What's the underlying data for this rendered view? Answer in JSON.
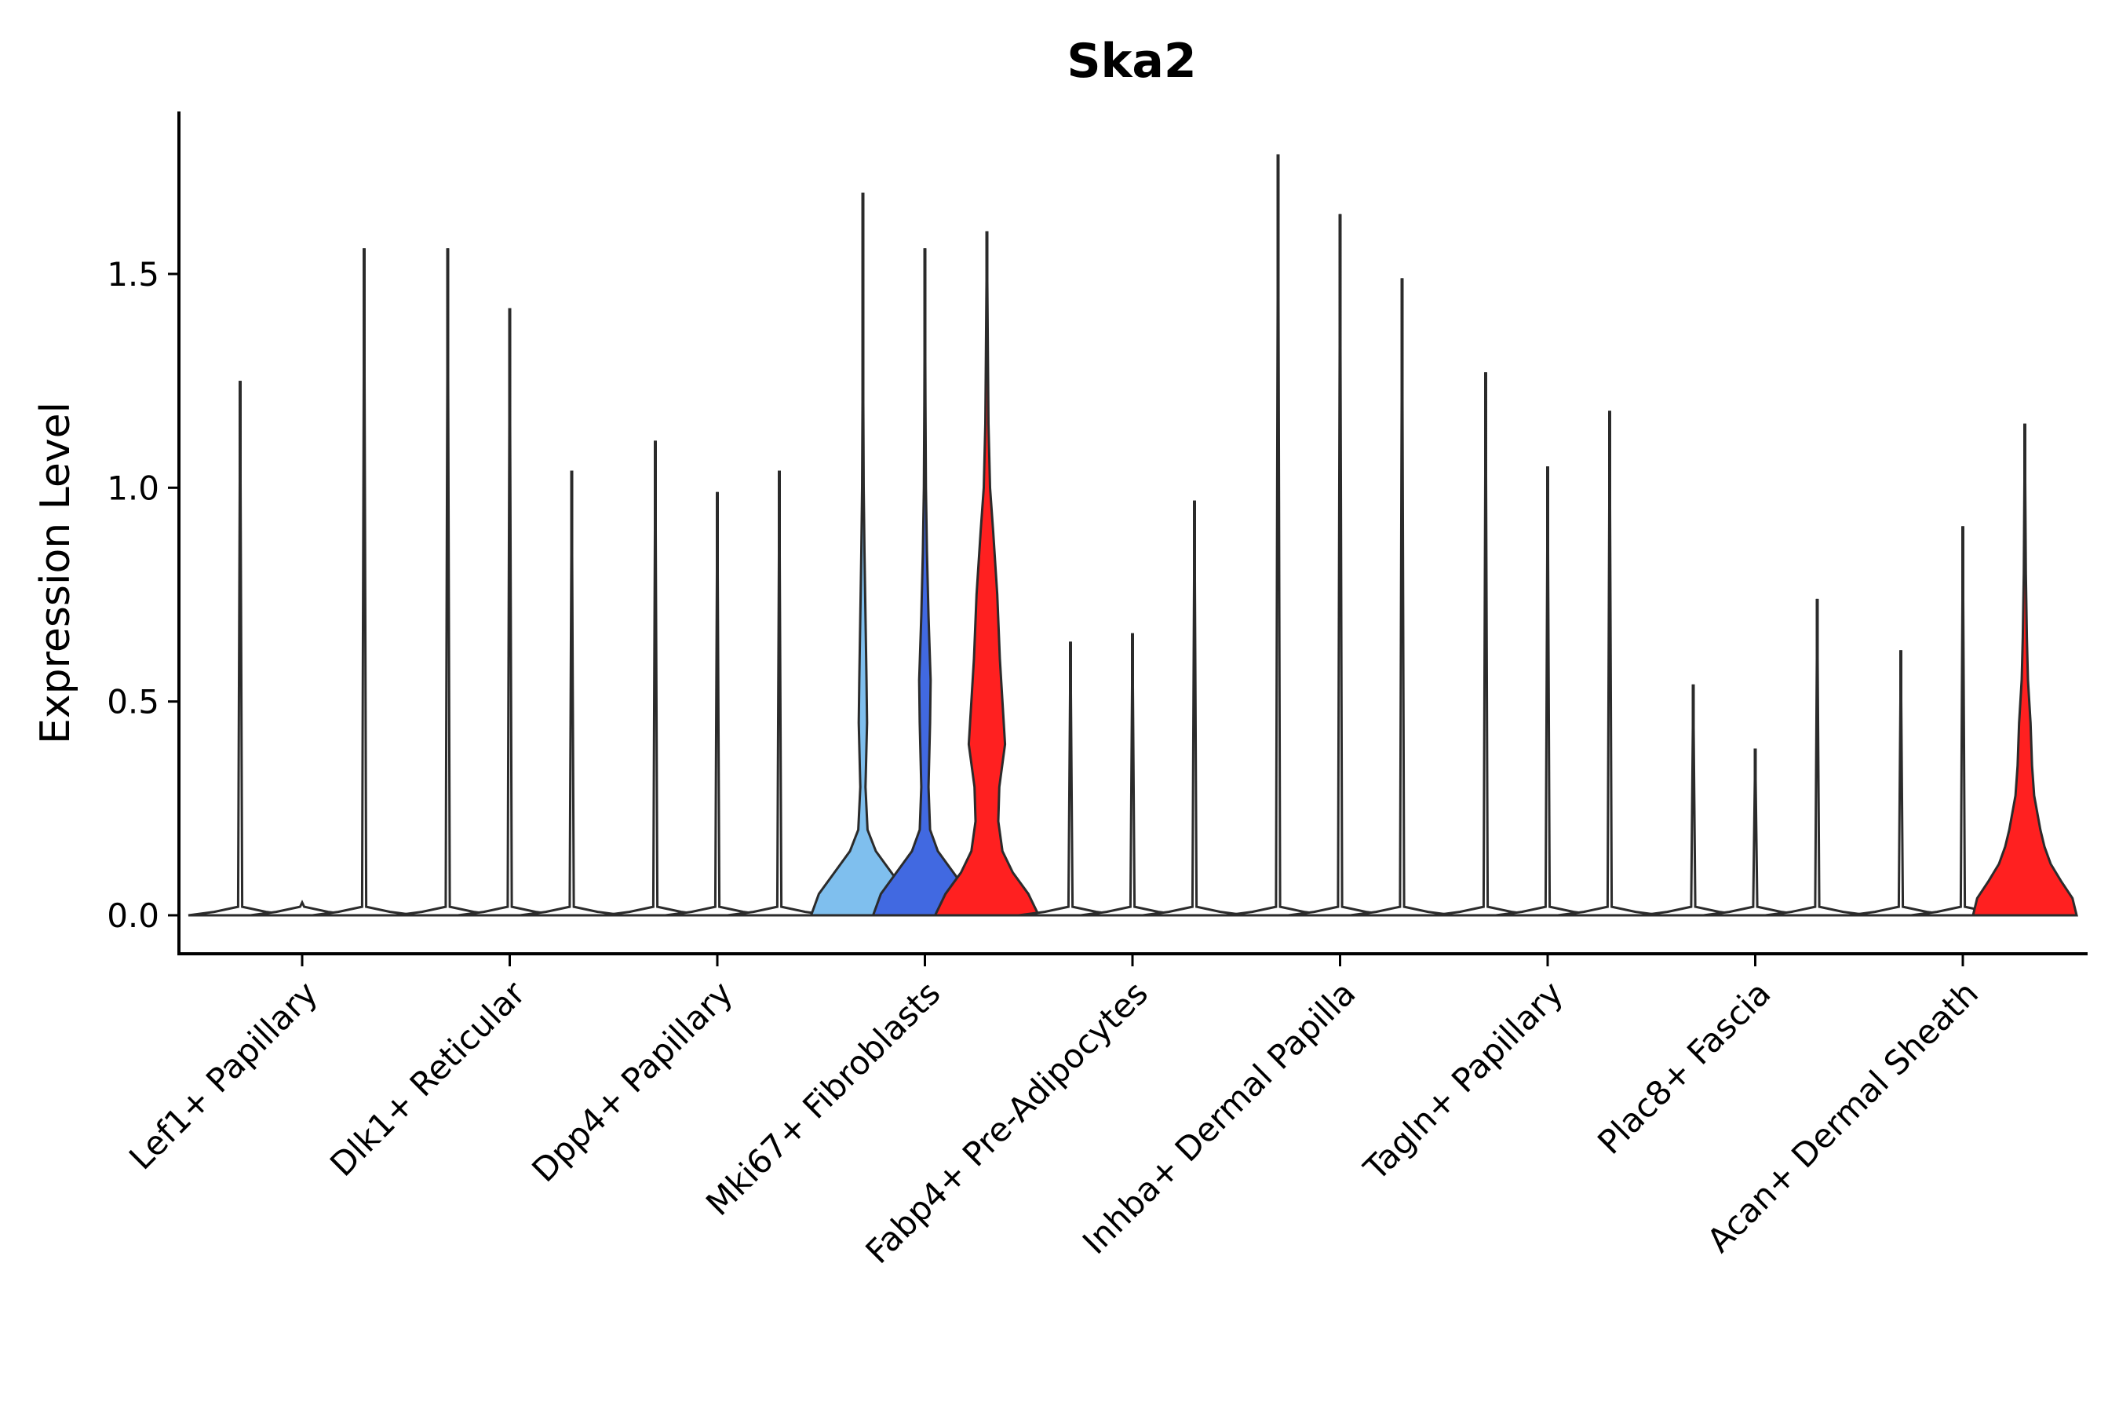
{
  "chart_data": {
    "type": "violin",
    "title": "Ska2",
    "ylabel": "Expression Level",
    "xlabel": "",
    "ylim": [
      -0.09,
      1.88
    ],
    "yticks": [
      0.0,
      0.5,
      1.0,
      1.5
    ],
    "ytick_labels": [
      "0.0",
      "0.5",
      "1.0",
      "1.5"
    ],
    "categories": [
      "Lef1+ Papillary",
      "Dlk1+ Reticular",
      "Dpp4+ Papillary",
      "Mki67+ Fibroblasts",
      "Fabp4+ Pre-Adipocytes",
      "Inhba+ Dermal Papilla",
      "Tagln+ Papillary",
      "Plac8+ Fascia",
      "Acan+ Dermal Sheath"
    ],
    "groups_per_category": 3,
    "group_colors": {
      "Mki67+ Fibroblasts": [
        "#7fbfee",
        "#4169e1",
        "#ff2020"
      ],
      "Acan+ Dermal Sheath": [
        "#ffffff",
        "#ffffff",
        "#ff2020"
      ]
    },
    "default_fill": "#ffffff",
    "max_values": [
      [
        1.25,
        0.01,
        1.56
      ],
      [
        1.56,
        1.42,
        1.04
      ],
      [
        1.11,
        0.99,
        1.04
      ],
      [
        1.69,
        1.56,
        1.6
      ],
      [
        0.64,
        0.66,
        0.97
      ],
      [
        1.78,
        1.64,
        1.49
      ],
      [
        1.27,
        1.05,
        1.18
      ],
      [
        0.54,
        0.39,
        0.74
      ],
      [
        0.62,
        0.91,
        1.15
      ]
    ],
    "densities": {
      "3-0": [
        [
          0,
          1.0
        ],
        [
          0.05,
          0.85
        ],
        [
          0.1,
          0.55
        ],
        [
          0.15,
          0.25
        ],
        [
          0.2,
          0.09
        ],
        [
          0.3,
          0.05
        ],
        [
          0.45,
          0.08
        ],
        [
          0.55,
          0.07
        ],
        [
          0.7,
          0.05
        ],
        [
          0.85,
          0.03
        ],
        [
          1.0,
          0.015
        ],
        [
          1.2,
          0.008
        ],
        [
          1.69,
          0.0
        ]
      ],
      "3-1": [
        [
          0,
          1.0
        ],
        [
          0.05,
          0.85
        ],
        [
          0.1,
          0.55
        ],
        [
          0.15,
          0.25
        ],
        [
          0.2,
          0.1
        ],
        [
          0.3,
          0.07
        ],
        [
          0.45,
          0.1
        ],
        [
          0.55,
          0.11
        ],
        [
          0.7,
          0.07
        ],
        [
          0.85,
          0.04
        ],
        [
          1.0,
          0.02
        ],
        [
          1.2,
          0.01
        ],
        [
          1.56,
          0.0
        ]
      ],
      "3-2": [
        [
          0,
          1.0
        ],
        [
          0.05,
          0.8
        ],
        [
          0.1,
          0.5
        ],
        [
          0.15,
          0.3
        ],
        [
          0.22,
          0.22
        ],
        [
          0.3,
          0.24
        ],
        [
          0.4,
          0.35
        ],
        [
          0.5,
          0.3
        ],
        [
          0.6,
          0.25
        ],
        [
          0.75,
          0.2
        ],
        [
          0.9,
          0.12
        ],
        [
          1.0,
          0.06
        ],
        [
          1.15,
          0.03
        ],
        [
          1.3,
          0.02
        ],
        [
          1.6,
          0.0
        ]
      ],
      "8-2": [
        [
          0,
          1.0
        ],
        [
          0.04,
          0.92
        ],
        [
          0.08,
          0.7
        ],
        [
          0.12,
          0.5
        ],
        [
          0.16,
          0.38
        ],
        [
          0.2,
          0.3
        ],
        [
          0.28,
          0.18
        ],
        [
          0.35,
          0.14
        ],
        [
          0.45,
          0.11
        ],
        [
          0.55,
          0.06
        ],
        [
          0.65,
          0.04
        ],
        [
          0.8,
          0.02
        ],
        [
          1.15,
          0.0
        ]
      ]
    }
  }
}
